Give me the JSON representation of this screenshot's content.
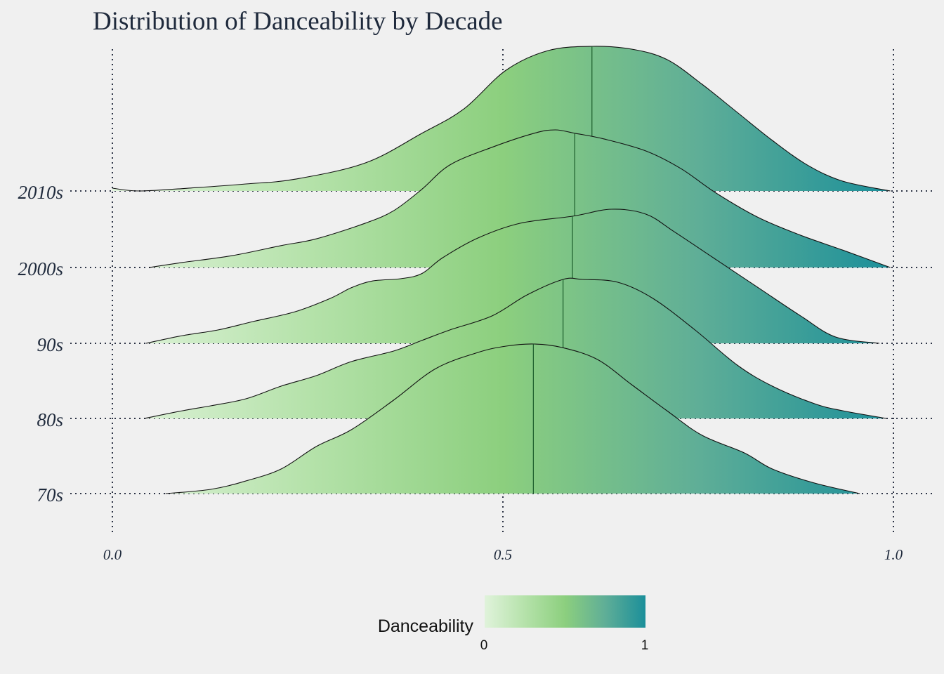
{
  "chart_data": {
    "type": "ridgeline",
    "title": "Distribution of Danceability by Decade",
    "xlabel": "",
    "ylabel": "",
    "xlim": [
      0,
      1
    ],
    "x_ticks": [
      "0.0",
      "0.5",
      "1.0"
    ],
    "x_tick_values": [
      0,
      0.5,
      1
    ],
    "grid": "dotted",
    "legend": {
      "title": "Danceability",
      "min_label": "0",
      "max_label": "1",
      "placement": "bottom",
      "colors": [
        "#e0f3db",
        "#b5e2aa",
        "#8ccf7e",
        "#5fae97",
        "#1b8f9a"
      ]
    },
    "series": [
      {
        "name": "2010s",
        "median": 0.614,
        "x": [
          0.0,
          0.036,
          0.108,
          0.171,
          0.234,
          0.324,
          0.396,
          0.45,
          0.504,
          0.558,
          0.614,
          0.665,
          0.71,
          0.755,
          0.8,
          0.845,
          0.89,
          0.935,
          0.996
        ],
        "density": [
          0.05,
          0,
          0.06,
          0.125,
          0.21,
          0.5,
          1.025,
          1.46,
          2.15,
          2.5,
          2.575,
          2.525,
          2.34,
          1.9,
          1.4,
          0.9,
          0.46,
          0.175,
          0
        ]
      },
      {
        "name": "2000s",
        "median": 0.592,
        "x": [
          0.047,
          0.09,
          0.153,
          0.216,
          0.261,
          0.324,
          0.36,
          0.396,
          0.432,
          0.486,
          0.54,
          0.567,
          0.592,
          0.629,
          0.683,
          0.728,
          0.773,
          0.827,
          0.881,
          0.935,
          0.996
        ],
        "density": [
          0,
          0.09,
          0.21,
          0.39,
          0.51,
          0.79,
          1.01,
          1.39,
          1.825,
          2.14,
          2.39,
          2.45,
          2.39,
          2.29,
          2.075,
          1.76,
          1.325,
          0.89,
          0.575,
          0.31,
          0
        ]
      },
      {
        "name": "90s",
        "median": 0.589,
        "x": [
          0.043,
          0.09,
          0.135,
          0.18,
          0.234,
          0.279,
          0.306,
          0.333,
          0.369,
          0.396,
          0.423,
          0.468,
          0.522,
          0.589,
          0.639,
          0.683,
          0.719,
          0.773,
          0.827,
          0.881,
          0.926,
          0.982
        ],
        "density": [
          0,
          0.1375,
          0.2375,
          0.3875,
          0.5625,
          0.8,
          0.99,
          1.11,
          1.15,
          1.24,
          1.525,
          1.875,
          2.1375,
          2.2625,
          2.3875,
          2.3,
          1.99,
          1.49,
          0.99,
          0.49,
          0.1125,
          0
        ]
      },
      {
        "name": "80s",
        "median": 0.577,
        "x": [
          0.041,
          0.09,
          0.126,
          0.171,
          0.216,
          0.261,
          0.306,
          0.36,
          0.396,
          0.432,
          0.486,
          0.531,
          0.577,
          0.602,
          0.647,
          0.692,
          0.746,
          0.8,
          0.845,
          0.899,
          0.935,
          0.991
        ],
        "density": [
          0,
          0.1375,
          0.225,
          0.35,
          0.575,
          0.7625,
          1.0125,
          1.2,
          1.3875,
          1.575,
          1.825,
          2.2,
          2.475,
          2.475,
          2.425,
          2.1375,
          1.575,
          0.95,
          0.575,
          0.2625,
          0.1375,
          0
        ]
      },
      {
        "name": "70s",
        "median": 0.539,
        "x": [
          0.068,
          0.126,
          0.171,
          0.216,
          0.261,
          0.306,
          0.36,
          0.414,
          0.468,
          0.504,
          0.54,
          0.576,
          0.621,
          0.665,
          0.71,
          0.755,
          0.809,
          0.845,
          0.899,
          0.957
        ],
        "density": [
          0,
          0.075,
          0.225,
          0.4375,
          0.8375,
          1.1375,
          1.6625,
          2.225,
          2.5125,
          2.625,
          2.6625,
          2.6,
          2.3875,
          1.9375,
          1.475,
          1.0375,
          0.725,
          0.4375,
          0.1875,
          0
        ]
      }
    ]
  }
}
